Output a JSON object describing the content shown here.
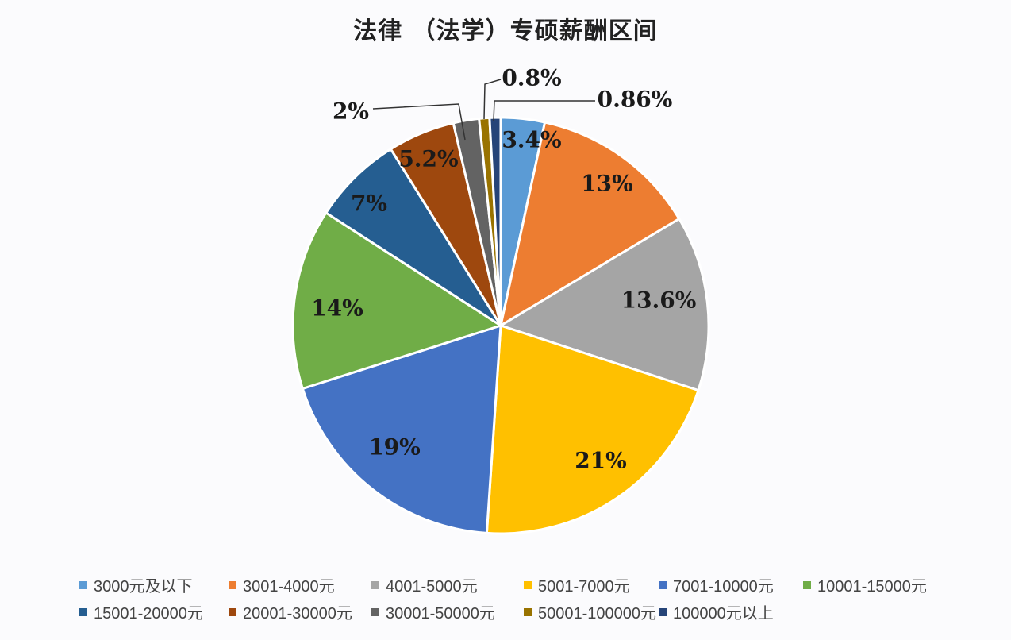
{
  "chart_data": {
    "type": "pie",
    "title": "法律 （法学）专硕薪酬区间",
    "slices": [
      {
        "label": "3000元及以下",
        "value": 3.4,
        "text": "3.4%",
        "color": "#5b9bd5"
      },
      {
        "label": "3001-4000元",
        "value": 13,
        "text": "13%",
        "color": "#ed7d31"
      },
      {
        "label": "4001-5000元",
        "value": 13.6,
        "text": "13.6%",
        "color": "#a5a5a5"
      },
      {
        "label": "5001-7000元",
        "value": 21,
        "text": "21%",
        "color": "#ffc000"
      },
      {
        "label": "7001-10000元",
        "value": 19,
        "text": "19%",
        "color": "#4472c4"
      },
      {
        "label": "10001-15000元",
        "value": 14,
        "text": "14%",
        "color": "#70ad47"
      },
      {
        "label": "15001-20000元",
        "value": 7,
        "text": "7%",
        "color": "#255e91"
      },
      {
        "label": "20001-30000元",
        "value": 5.2,
        "text": "5.2%",
        "color": "#9e480e"
      },
      {
        "label": "30001-50000元",
        "value": 2,
        "text": "2%",
        "color": "#636363"
      },
      {
        "label": "50001-100000元",
        "value": 0.8,
        "text": "0.8%",
        "color": "#997300"
      },
      {
        "label": "100000元以上",
        "value": 0.86,
        "text": "0.86%",
        "color": "#264478"
      }
    ],
    "legend_position": "bottom"
  }
}
